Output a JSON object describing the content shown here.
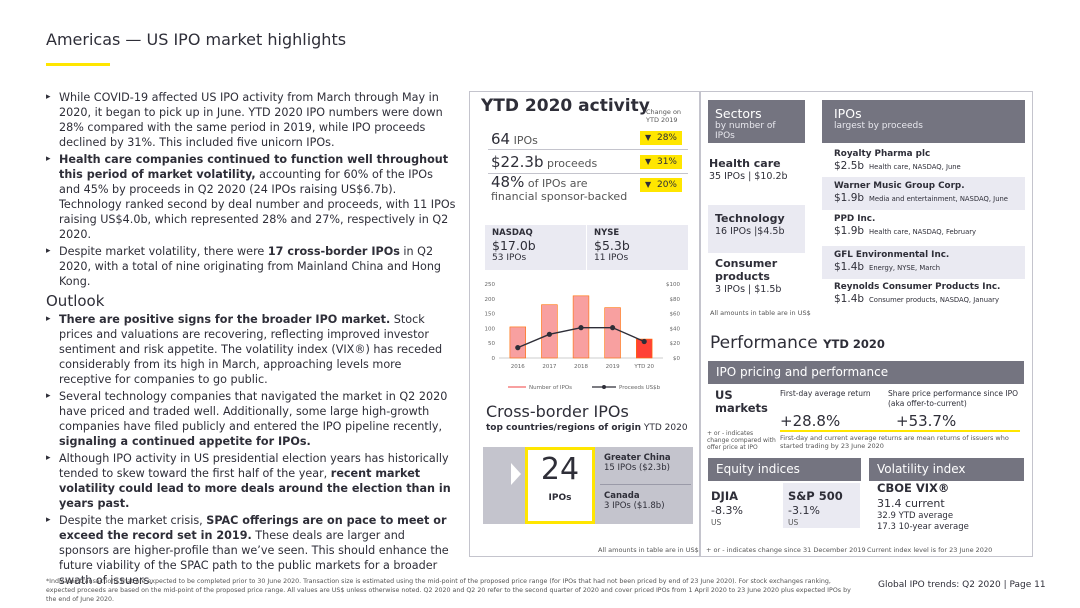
{
  "header": {
    "title": "Americas — US IPO market highlights"
  },
  "left": {
    "bullets1": [
      {
        "plain": "While COVID-19 affected US IPO activity from March through May in 2020, it began to pick up in June. YTD 2020 IPO numbers were down 28% compared with the same period in 2019, while IPO proceeds declined by 31%. This included five unicorn IPOs."
      },
      {
        "bold": "Health care companies continued to function well throughout this period of market volatility,",
        "rest": " accounting for 60% of the IPOs and 45% by proceeds in Q2 2020 (24 IPOs raising US$6.7b). Technology ranked second by deal number and proceeds, with 11 IPOs raising US$4.0b, which represented 28% and 27%, respectively in Q2 2020."
      },
      {
        "pre": "Despite market volatility, there were ",
        "bold": "17 cross-border IPOs",
        "rest": " in Q2 2020, with a total of nine originating from Mainland China and Hong Kong."
      }
    ],
    "outlook_heading": "Outlook",
    "bullets2": [
      {
        "bold": "There are positive signs for the broader IPO market.",
        "rest": " Stock prices and valuations are recovering, reflecting improved investor sentiment and risk appetite. The volatility index (VIX®) has receded considerably from its high in March, approaching levels more receptive for companies to go public."
      },
      {
        "pre": "Several technology companies that navigated the market in Q2 2020 have priced and traded well. Additionally, some large high-growth companies have filed publicly and entered the IPO pipeline recently, ",
        "bold": "signaling a continued appetite for IPOs.",
        "rest": ""
      },
      {
        "pre": "Although IPO activity in US presidential election years has historically tended to skew toward the first half of the year, ",
        "bold": "recent market volatility could lead to more deals around the election than in years past.",
        "rest": ""
      },
      {
        "pre": "Despite the market crisis, ",
        "bold": "SPAC offerings are on pace to meet or exceed the record set in 2019.",
        "rest": " These deals are larger and sponsors are higher-profile than we’ve seen. This should enhance the future viability of the SPAC path to the public markets for a broader swath of issuers."
      }
    ]
  },
  "ytd": {
    "title": "YTD 2020 activity",
    "change_label": "Change on YTD 2019",
    "ipos_num": "64",
    "ipos_label": "IPOs",
    "ipos_change": "28%",
    "proceeds_num": "$22.3b",
    "proceeds_label": "proceeds",
    "proceeds_change": "31%",
    "financial_num": "48%",
    "financial_label": "of IPOs are financial sponsor-backed",
    "financial_change": "20%",
    "nasdaq": {
      "label": "NASDAQ",
      "value": "$17.0b",
      "ipos": "53 IPOs"
    },
    "nyse": {
      "label": "NYSE",
      "value": "$5.3b",
      "ipos": "11 IPOs"
    }
  },
  "chart_data": {
    "type": "bar",
    "categories": [
      "2016",
      "2017",
      "2018",
      "2019",
      "YTD 20"
    ],
    "series": [
      {
        "name": "Number of IPOs",
        "type": "bar",
        "axis": "left",
        "values": [
          105,
          180,
          210,
          170,
          64
        ]
      },
      {
        "name": "Proceeds US$b",
        "type": "line",
        "axis": "right",
        "values": [
          14,
          32,
          41,
          41,
          22.3
        ]
      }
    ],
    "ylim_left": [
      0,
      250
    ],
    "yticks_left": [
      "0",
      "50",
      "100",
      "150",
      "200",
      "250"
    ],
    "ylim_right": [
      0,
      100
    ],
    "yticks_right": [
      "$0",
      "$20",
      "$40",
      "$60",
      "$80",
      "$100"
    ],
    "colors": {
      "bar": "#f8a0a0",
      "bar_last": "#ff4136",
      "bar_outline": "#ff6d00",
      "line": "#2e2e38"
    },
    "legend_position": "bottom"
  },
  "crossborder": {
    "title": "Cross-border IPOs",
    "subtitle_bold": "top countries/regions of origin",
    "subtitle_rest": "YTD 2020",
    "count": "24",
    "count_label": "IPOs",
    "items": [
      {
        "name": "Greater China",
        "detail": "15 IPOs ($2.3b)"
      },
      {
        "name": "Canada",
        "detail": "3 IPOs ($1.8b)"
      }
    ],
    "footnote": "All amounts in table are in US$"
  },
  "sectors": {
    "title": "Sectors",
    "subtitle": "by number of IPOs",
    "items": [
      {
        "name": "Health care",
        "detail": "35 IPOs | $10.2b"
      },
      {
        "name": "Technology",
        "detail": "16 IPOs |$4.5b"
      },
      {
        "name": "Consumer products",
        "detail": "3 IPOs | $1.5b"
      }
    ],
    "footnote": "All amounts in table are in US$"
  },
  "ipos": {
    "title": "IPOs",
    "subtitle": "largest by proceeds",
    "items": [
      {
        "name": "Royalty Pharma plc",
        "value": "$2.5b",
        "detail": "Health care, NASDAQ, June"
      },
      {
        "name": "Warner Music Group Corp.",
        "value": "$1.9b",
        "detail": "Media and entertainment, NASDAQ, June"
      },
      {
        "name": "PPD Inc.",
        "value": "$1.9b",
        "detail": "Health care, NASDAQ, February"
      },
      {
        "name": "GFL Environmental Inc.",
        "value": "$1.4b",
        "detail": "Energy, NYSE, March"
      },
      {
        "name": "Reynolds Consumer Products Inc.",
        "value": "$1.4b",
        "detail": "Consumer products, NASDAQ, January"
      }
    ]
  },
  "performance": {
    "title": "Performance",
    "title_suffix": "YTD 2020",
    "pricing_header": "IPO pricing and performance",
    "us_markets": "US markets",
    "first_day_label": "First-day average return",
    "first_day_value": "+28.8%",
    "share_label": "Share price performance since IPO (aka offer-to-current)",
    "share_value": "+53.7%",
    "note_left": "+ or - indicates change compared with offer price at IPO",
    "note_right": "First-day and current average returns are mean returns of issuers who started trading by 23 June 2020"
  },
  "equity": {
    "header": "Equity indices",
    "items": [
      {
        "name": "DJIA",
        "value": "-8.3%",
        "region": "US"
      },
      {
        "name": "S&P 500",
        "value": "-3.1%",
        "region": "US"
      }
    ],
    "footnote": "+ or - indicates change since 31 December 2019"
  },
  "volatility": {
    "header": "Volatility index",
    "name": "CBOE VIX®",
    "current": "31.4 current",
    "ytd_avg": "32.9 YTD average",
    "ten_yr": "17.3 10-year average",
    "footnote": "Current index level is for 23 June 2020"
  },
  "footer": {
    "note": "*Indicates transactions that are expected to be completed prior to 30 June 2020. Transaction size is estimated using the mid-point of the proposed price range (for IPOs that had not been priced by end of 23 June 2020). For stock exchanges ranking, expected proceeds are based on the mid-point of the proposed price range. All values are US$ unless otherwise noted. Q2 2020 and Q2 20 refer to the second quarter of 2020 and cover priced IPOs from 1 April 2020 to 23 June 2020 plus expected IPOs by the end of June 2020.",
    "page": "Global IPO trends: Q2 2020  |  Page 11"
  }
}
